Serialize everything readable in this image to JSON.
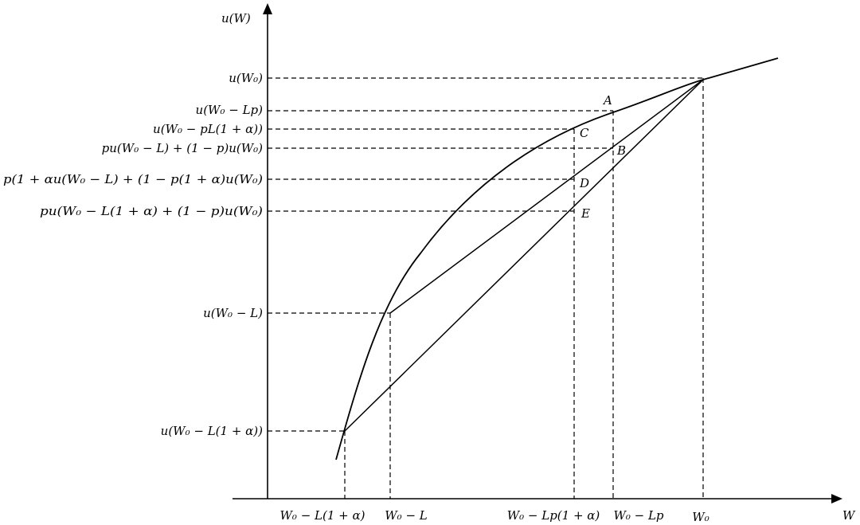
{
  "axes": {
    "y_title": "u(W)",
    "x_title": "W"
  },
  "y_labels": {
    "u_w0": "u(W₀)",
    "u_w0_lp": "u(W₀ − Lp)",
    "u_w0_pl1a": "u(W₀ − pL(1 + α))",
    "exp_u_full": "pu(W₀ − L) + (1 − p)u(W₀)",
    "exp_u_partial": "p(1 + αu(W₀ − L) + (1 − p(1 + α)u(W₀)",
    "exp_u_loaded": "pu(W₀ − L(1 + α) + (1 − p)u(W₀)",
    "u_w0_l": "u(W₀ − L)",
    "u_w0_l1a": "u(W₀ − L(1 + α))"
  },
  "x_labels": {
    "w0_l1a": "W₀ − L(1 + α)",
    "w0_l": "W₀ − L",
    "w0_lp1a": "W₀ − Lp(1 + α)",
    "w0_lp": "W₀ − Lp",
    "w0": "W₀"
  },
  "points": {
    "A": "A",
    "B": "B",
    "C": "C",
    "D": "D",
    "E": "E"
  }
}
